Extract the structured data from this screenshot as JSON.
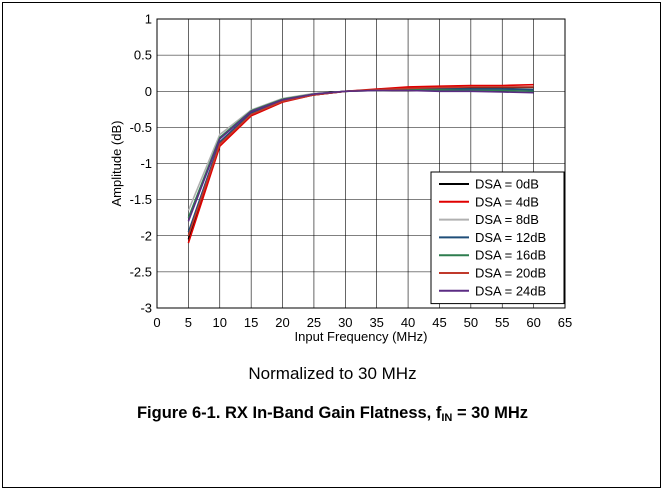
{
  "chart_data": {
    "type": "line",
    "xlabel": "Input Frequency (MHz)",
    "ylabel": "Amplitude (dB)",
    "xlim": [
      0,
      65
    ],
    "ylim": [
      -3,
      1
    ],
    "xticks": [
      0,
      5,
      10,
      15,
      20,
      25,
      30,
      35,
      40,
      45,
      50,
      55,
      60,
      65
    ],
    "yticks": [
      1,
      0.5,
      0,
      -0.5,
      -1,
      -1.5,
      -2,
      -2.5,
      -3
    ],
    "ytick_labels": [
      "1",
      "0.5",
      "0",
      "-0.5",
      "-1",
      "-1.5",
      "-2",
      "-2.5",
      "-3"
    ],
    "grid": true,
    "legend_position": "bottom-right",
    "x": [
      5,
      10,
      15,
      20,
      25,
      30,
      35,
      40,
      45,
      50,
      55,
      60
    ],
    "series": [
      {
        "name": "DSA = 0dB",
        "color": "#000000",
        "values": [
          -2.05,
          -0.72,
          -0.32,
          -0.14,
          -0.05,
          0.0,
          0.02,
          0.04,
          0.05,
          0.05,
          0.05,
          0.05
        ]
      },
      {
        "name": "DSA = 4dB",
        "color": "#e00000",
        "values": [
          -2.1,
          -0.76,
          -0.34,
          -0.15,
          -0.05,
          0.0,
          0.03,
          0.06,
          0.07,
          0.08,
          0.08,
          0.09
        ]
      },
      {
        "name": "DSA = 8dB",
        "color": "#b0b0b0",
        "values": [
          -1.65,
          -0.6,
          -0.26,
          -0.1,
          -0.03,
          0.0,
          0.01,
          0.02,
          0.02,
          0.02,
          0.02,
          0.02
        ]
      },
      {
        "name": "DSA = 12dB",
        "color": "#1f4e79",
        "values": [
          -1.95,
          -0.7,
          -0.3,
          -0.13,
          -0.04,
          0.0,
          0.02,
          0.03,
          0.03,
          0.03,
          0.03,
          0.02
        ]
      },
      {
        "name": "DSA = 16dB",
        "color": "#2e7d4f",
        "values": [
          -1.75,
          -0.64,
          -0.27,
          -0.11,
          -0.04,
          0.0,
          0.01,
          0.02,
          0.02,
          0.01,
          0.01,
          0.0
        ]
      },
      {
        "name": "DSA = 20dB",
        "color": "#c0392b",
        "values": [
          -2.0,
          -0.73,
          -0.32,
          -0.14,
          -0.05,
          0.0,
          0.02,
          0.04,
          0.05,
          0.06,
          0.06,
          0.06
        ]
      },
      {
        "name": "DSA = 24dB",
        "color": "#5b2c83",
        "values": [
          -1.8,
          -0.66,
          -0.28,
          -0.12,
          -0.04,
          0.0,
          0.01,
          0.01,
          0.0,
          0.0,
          -0.01,
          -0.02
        ]
      }
    ]
  },
  "note": "Normalized to 30 MHz",
  "caption": {
    "prefix": "Figure 6-1. RX In-Band Gain Flatness, f",
    "sub": "IN",
    "suffix": " = 30 MHz"
  }
}
